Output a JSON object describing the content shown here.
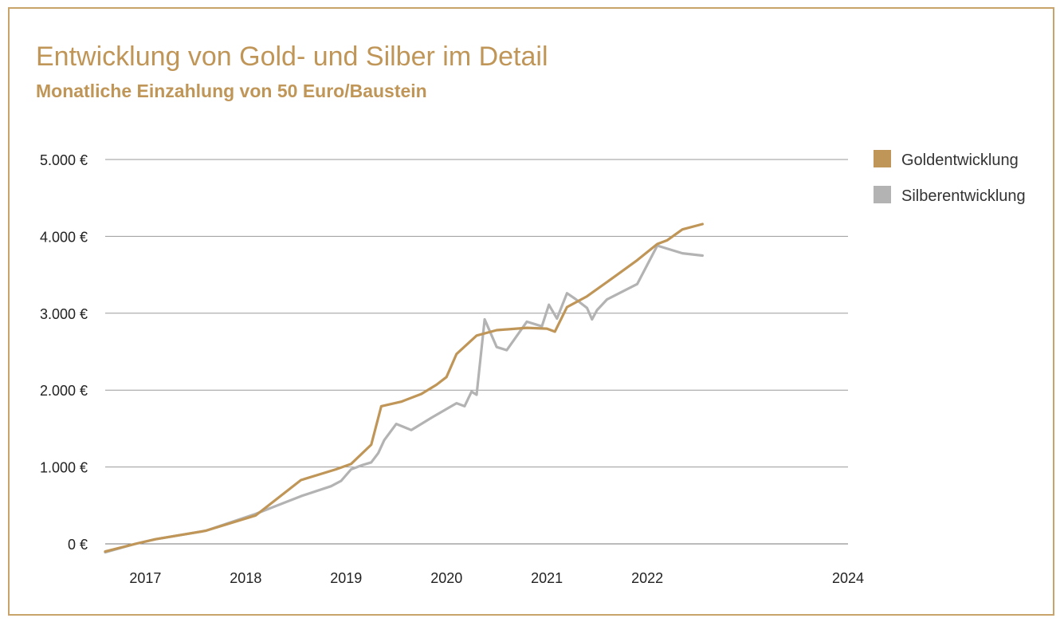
{
  "chart_data": {
    "type": "line",
    "title": "Entwicklung von Gold- und Silber im Detail",
    "subtitle": "Monatliche Einzahlung von 50 Euro/Baustein",
    "xlabel": "",
    "ylabel": "",
    "xlim": [
      2016.6,
      2024
    ],
    "ylim": [
      0,
      5000
    ],
    "x_ticks": [
      {
        "value": 2017,
        "label": "2017"
      },
      {
        "value": 2018,
        "label": "2018"
      },
      {
        "value": 2019,
        "label": "2019"
      },
      {
        "value": 2020,
        "label": "2020"
      },
      {
        "value": 2021,
        "label": "2021"
      },
      {
        "value": 2022,
        "label": "2022"
      },
      {
        "value": 2024,
        "label": "2024"
      }
    ],
    "y_ticks": [
      {
        "value": 0,
        "label": "0 €"
      },
      {
        "value": 1000,
        "label": "1.000 €"
      },
      {
        "value": 2000,
        "label": "2.000 €"
      },
      {
        "value": 3000,
        "label": "3.000 €"
      },
      {
        "value": 4000,
        "label": "4.000 €"
      },
      {
        "value": 5000,
        "label": "5.000 €"
      }
    ],
    "grid": true,
    "legend_position": "top-right",
    "series": [
      {
        "name": "Goldentwicklung",
        "color": "#c09658",
        "x": [
          2016.6,
          2016.9,
          2017.1,
          2017.6,
          2018.1,
          2018.55,
          2018.9,
          2019.05,
          2019.25,
          2019.35,
          2019.55,
          2019.75,
          2019.9,
          2020.0,
          2020.1,
          2020.3,
          2020.5,
          2020.8,
          2021.0,
          2021.08,
          2021.2,
          2021.4,
          2021.7,
          2021.9,
          2022.1,
          2022.2,
          2022.35,
          2022.55
        ],
        "values": [
          -100,
          0,
          60,
          170,
          370,
          830,
          970,
          1040,
          1290,
          1790,
          1850,
          1950,
          2070,
          2170,
          2470,
          2710,
          2780,
          2810,
          2800,
          2760,
          3080,
          3220,
          3500,
          3690,
          3900,
          3950,
          4090,
          4160
        ]
      },
      {
        "name": "Silberentwicklung",
        "color": "#b3b3b3",
        "x": [
          2016.6,
          2016.9,
          2017.1,
          2017.6,
          2018.1,
          2018.55,
          2018.85,
          2018.95,
          2019.05,
          2019.15,
          2019.25,
          2019.32,
          2019.38,
          2019.5,
          2019.65,
          2019.85,
          2020.1,
          2020.18,
          2020.25,
          2020.3,
          2020.38,
          2020.5,
          2020.6,
          2020.8,
          2020.95,
          2021.02,
          2021.1,
          2021.2,
          2021.28,
          2021.4,
          2021.45,
          2021.5,
          2021.6,
          2021.9,
          2022.1,
          2022.35,
          2022.55
        ],
        "values": [
          -110,
          0,
          60,
          170,
          390,
          620,
          750,
          820,
          970,
          1020,
          1060,
          1180,
          1350,
          1560,
          1480,
          1640,
          1830,
          1790,
          1980,
          1940,
          2920,
          2560,
          2520,
          2890,
          2830,
          3110,
          2930,
          3260,
          3190,
          3070,
          2920,
          3040,
          3180,
          3380,
          3880,
          3780,
          3750
        ]
      }
    ]
  }
}
